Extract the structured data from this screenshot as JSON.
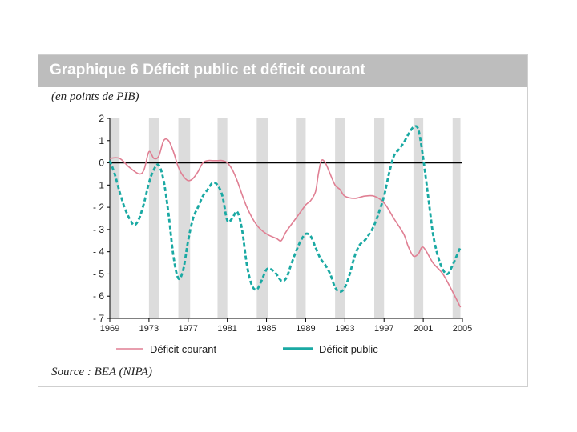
{
  "title": "Graphique 6  Déficit public et déficit courant",
  "unit_label": "(en points de PIB)",
  "source": "Source : BEA (NIPA)",
  "colors": {
    "title_bar": "#bdbdbd",
    "current_account": "#e07f93",
    "public": "#1aa9a3",
    "shading": "#dcdcdc",
    "zero_line": "#000000"
  },
  "chart_data": {
    "type": "line",
    "title": "Déficit public et déficit courant",
    "ylabel": "en points de PIB",
    "xlim": [
      1969,
      2005
    ],
    "ylim": [
      -7,
      2
    ],
    "y_ticks": [
      "2",
      "1",
      "0",
      "- 1",
      "- 2",
      "- 3",
      "- 4",
      "- 5",
      "- 6",
      "- 7"
    ],
    "y_tick_values": [
      2,
      1,
      0,
      -1,
      -2,
      -3,
      -4,
      -5,
      -6,
      -7
    ],
    "x_ticks": [
      "1969",
      "1973",
      "1977",
      "1981",
      "1985",
      "1989",
      "1993",
      "1997",
      "2001",
      "2005"
    ],
    "x_tick_values": [
      1969,
      1973,
      1977,
      1981,
      1985,
      1989,
      1993,
      1997,
      2001,
      2005
    ],
    "shaded_periods": [
      [
        1969,
        1970
      ],
      [
        1973,
        1974
      ],
      [
        1976,
        1977.2
      ],
      [
        1980,
        1981
      ],
      [
        1984,
        1985.2
      ],
      [
        1988,
        1989
      ],
      [
        1992,
        1993
      ],
      [
        1996,
        1997
      ],
      [
        2000,
        2001
      ],
      [
        2004,
        2004.8
      ]
    ],
    "series": [
      {
        "name": "Déficit courant",
        "style": "solid",
        "x": [
          1969,
          1970,
          1971,
          1972,
          1972.5,
          1973,
          1973.5,
          1974,
          1974.5,
          1975,
          1975.5,
          1976,
          1976.5,
          1977,
          1977.5,
          1978,
          1978.5,
          1979,
          1979.5,
          1980,
          1980.5,
          1981,
          1981.5,
          1982,
          1983,
          1984,
          1985,
          1986,
          1986.5,
          1987,
          1988,
          1989,
          1989.5,
          1990,
          1990.3,
          1990.6,
          1991,
          1991.5,
          1992,
          1992.5,
          1993,
          1994,
          1995,
          1996,
          1997,
          1998,
          1999,
          1999.5,
          2000,
          2000.5,
          2001,
          2002,
          2003,
          2004,
          2004.8
        ],
        "values": [
          0.2,
          0.2,
          -0.2,
          -0.5,
          -0.3,
          0.5,
          0.2,
          0.3,
          1.0,
          1.0,
          0.5,
          -0.2,
          -0.6,
          -0.8,
          -0.7,
          -0.4,
          0.0,
          0.1,
          0.1,
          0.1,
          0.1,
          0.0,
          -0.3,
          -0.8,
          -2.0,
          -2.8,
          -3.2,
          -3.4,
          -3.5,
          -3.1,
          -2.5,
          -1.9,
          -1.7,
          -1.3,
          -0.5,
          0.1,
          0.0,
          -0.5,
          -1.0,
          -1.2,
          -1.5,
          -1.6,
          -1.5,
          -1.5,
          -1.8,
          -2.5,
          -3.2,
          -3.8,
          -4.2,
          -4.1,
          -3.8,
          -4.5,
          -5.0,
          -5.8,
          -6.5
        ]
      },
      {
        "name": "Déficit public",
        "style": "dashed",
        "x": [
          1969,
          1969.5,
          1970,
          1970.5,
          1971,
          1971.5,
          1972,
          1972.5,
          1973,
          1973.5,
          1974,
          1974.5,
          1975,
          1975.5,
          1976,
          1976.5,
          1977,
          1977.5,
          1978,
          1978.5,
          1979,
          1979.5,
          1980,
          1980.5,
          1981,
          1981.5,
          1982,
          1982.5,
          1983,
          1983.5,
          1984,
          1984.5,
          1985,
          1985.5,
          1986,
          1986.5,
          1987,
          1987.5,
          1988,
          1988.5,
          1989,
          1989.5,
          1990,
          1990.5,
          1991,
          1991.5,
          1992,
          1992.5,
          1993,
          1993.5,
          1994,
          1994.5,
          1995,
          1995.5,
          1996,
          1996.5,
          1997,
          1997.5,
          1998,
          1998.5,
          1999,
          1999.5,
          2000,
          2000.5,
          2001,
          2001.5,
          2002,
          2002.5,
          2003,
          2003.5,
          2004,
          2004.5,
          2004.8
        ],
        "values": [
          0.1,
          -0.5,
          -1.3,
          -2.0,
          -2.5,
          -2.8,
          -2.5,
          -1.8,
          -0.9,
          -0.3,
          -0.1,
          -0.8,
          -2.3,
          -4.2,
          -5.2,
          -4.8,
          -3.5,
          -2.5,
          -2.0,
          -1.5,
          -1.2,
          -0.9,
          -1.0,
          -1.5,
          -2.6,
          -2.5,
          -2.2,
          -3.0,
          -4.6,
          -5.5,
          -5.7,
          -5.3,
          -4.8,
          -4.8,
          -5.0,
          -5.3,
          -5.2,
          -4.6,
          -4.0,
          -3.5,
          -3.2,
          -3.3,
          -3.8,
          -4.3,
          -4.6,
          -5.0,
          -5.6,
          -5.8,
          -5.6,
          -5.0,
          -4.2,
          -3.7,
          -3.5,
          -3.2,
          -2.8,
          -2.2,
          -1.5,
          -0.5,
          0.3,
          0.6,
          0.9,
          1.3,
          1.6,
          1.5,
          0.2,
          -1.5,
          -3.2,
          -4.2,
          -4.8,
          -5.0,
          -4.6,
          -4.1,
          -3.8
        ]
      }
    ],
    "legend": [
      {
        "label": "Déficit courant",
        "style": "solid"
      },
      {
        "label": "Déficit public",
        "style": "dashed"
      }
    ],
    "legend_position": "bottom"
  }
}
